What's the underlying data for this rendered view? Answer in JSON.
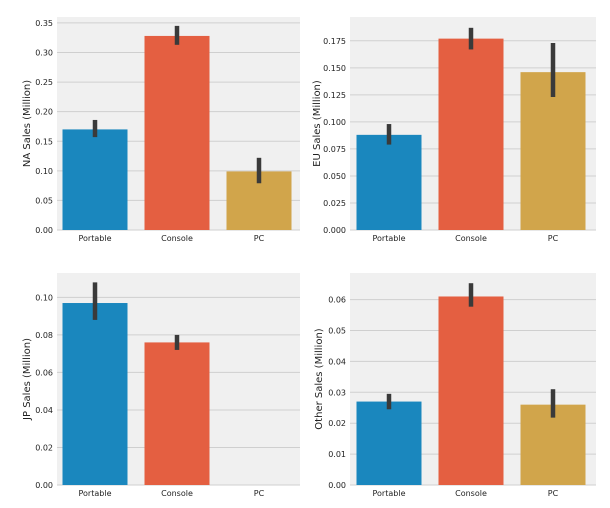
{
  "colors": {
    "background": "#f0f0f0",
    "grid": "#cfcfcf",
    "error_bar": "#3a3a3a",
    "series": [
      "#1a87be",
      "#e45f41",
      "#d1a54b"
    ]
  },
  "chart_data": [
    {
      "type": "bar",
      "categories": [
        "Portable",
        "Console",
        "PC"
      ],
      "values": [
        0.17,
        0.328,
        0.099
      ],
      "errors": [
        [
          0.157,
          0.186
        ],
        [
          0.313,
          0.345
        ],
        [
          0.079,
          0.122
        ]
      ],
      "ylabel": "NA Sales (Million)",
      "xlabel": "",
      "ylim": [
        0,
        0.36
      ],
      "yticks": [
        "0.00",
        "0.05",
        "0.10",
        "0.15",
        "0.20",
        "0.25",
        "0.30",
        "0.35"
      ]
    },
    {
      "type": "bar",
      "categories": [
        "Portable",
        "Console",
        "PC"
      ],
      "values": [
        0.088,
        0.177,
        0.146
      ],
      "errors": [
        [
          0.079,
          0.098
        ],
        [
          0.167,
          0.187
        ],
        [
          0.123,
          0.173
        ]
      ],
      "ylabel": "EU Sales (Million)",
      "xlabel": "",
      "ylim": [
        0,
        0.197
      ],
      "yticks": [
        "0.000",
        "0.025",
        "0.050",
        "0.075",
        "0.100",
        "0.125",
        "0.150",
        "0.175"
      ]
    },
    {
      "type": "bar",
      "categories": [
        "Portable",
        "Console",
        "PC"
      ],
      "values": [
        0.097,
        0.076,
        0.0
      ],
      "errors": [
        [
          0.088,
          0.108
        ],
        [
          0.072,
          0.08
        ],
        null
      ],
      "ylabel": "JP Sales (Million)",
      "xlabel": "",
      "ylim": [
        0,
        0.113
      ],
      "yticks": [
        "0.00",
        "0.02",
        "0.04",
        "0.06",
        "0.08",
        "0.10"
      ]
    },
    {
      "type": "bar",
      "categories": [
        "Portable",
        "Console",
        "PC"
      ],
      "values": [
        0.027,
        0.061,
        0.026
      ],
      "errors": [
        [
          0.0245,
          0.0295
        ],
        [
          0.0577,
          0.0653
        ],
        [
          0.0218,
          0.031
        ]
      ],
      "ylabel": "Other Sales (Million)",
      "xlabel": "",
      "ylim": [
        0,
        0.0686
      ],
      "yticks": [
        "0.00",
        "0.01",
        "0.02",
        "0.03",
        "0.04",
        "0.05",
        "0.06"
      ]
    }
  ]
}
